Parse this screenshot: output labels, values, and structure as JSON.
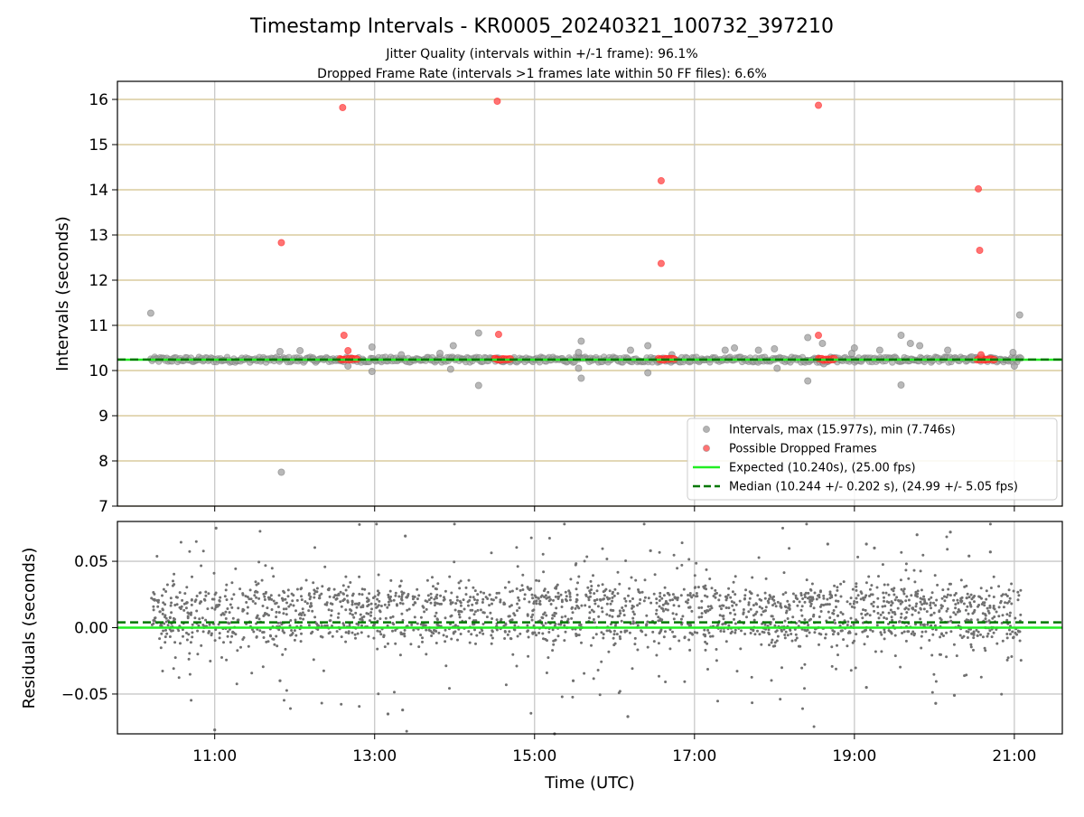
{
  "chart_data": {
    "type": "scatter",
    "title": "Timestamp Intervals - KR0005_20240321_100732_397210",
    "subtitle_lines": [
      "Jitter Quality (intervals within +/-1 frame): 96.1%",
      "Dropped Frame Rate (intervals >1 frames late within 50 FF files): 6.6%"
    ],
    "xlabel": "Time (UTC)",
    "x_ticks": [
      "11:00",
      "13:00",
      "15:00",
      "17:00",
      "19:00",
      "21:00"
    ],
    "x_range": [
      "09:47",
      "21:36"
    ],
    "panels": [
      {
        "ylabel": "Intervals (seconds)",
        "ylim": [
          7,
          16.4
        ],
        "y_ticks": [
          "7",
          "8",
          "9",
          "10",
          "11",
          "12",
          "13",
          "14",
          "15",
          "16"
        ],
        "grid": true,
        "legend_position": "lower-right",
        "legend": [
          {
            "label": "Intervals, max (15.977s), min (7.746s)",
            "kind": "marker",
            "color": "#a0a0a0"
          },
          {
            "label": "Possible Dropped Frames",
            "kind": "marker",
            "color": "#ff5050"
          },
          {
            "label": "Expected (10.240s), (25.00 fps)",
            "kind": "line",
            "color": "#22ee22"
          },
          {
            "label": "Median (10.244 +/- 0.202 s), (24.99 +/- 5.05 fps)",
            "kind": "dashed",
            "color": "#007700"
          }
        ],
        "expected_line": 10.24,
        "median_line": 10.244,
        "series": [
          {
            "name": "Intervals, max (15.977s), min (7.746s)",
            "color": "#a0a0a0",
            "baseline": {
              "y_min": 10.18,
              "y_max": 10.3,
              "x_start": "10:12",
              "x_end": "21:05"
            },
            "points": [
              [
                "10:12",
                11.27
              ],
              [
                "11:50",
                7.75
              ],
              [
                "21:04",
                11.23
              ],
              [
                "11:49",
                10.42
              ],
              [
                "12:04",
                10.44
              ],
              [
                "12:14",
                10.25
              ],
              [
                "12:40",
                10.1
              ],
              [
                "12:58",
                10.52
              ],
              [
                "12:58",
                9.98
              ],
              [
                "13:20",
                10.35
              ],
              [
                "13:49",
                10.38
              ],
              [
                "13:57",
                10.03
              ],
              [
                "13:59",
                10.55
              ],
              [
                "14:18",
                10.83
              ],
              [
                "14:18",
                9.67
              ],
              [
                "15:35",
                10.65
              ],
              [
                "15:35",
                9.83
              ],
              [
                "15:33",
                10.4
              ],
              [
                "15:33",
                10.05
              ],
              [
                "16:12",
                10.45
              ],
              [
                "16:25",
                10.55
              ],
              [
                "16:25",
                9.95
              ],
              [
                "16:43",
                10.35
              ],
              [
                "17:23",
                10.45
              ],
              [
                "17:30",
                10.5
              ],
              [
                "17:48",
                10.45
              ],
              [
                "18:00",
                10.48
              ],
              [
                "18:02",
                10.05
              ],
              [
                "18:25",
                10.73
              ],
              [
                "18:25",
                9.77
              ],
              [
                "18:31",
                10.25
              ],
              [
                "18:36",
                10.6
              ],
              [
                "18:37",
                10.15
              ],
              [
                "18:58",
                10.38
              ],
              [
                "19:00",
                10.5
              ],
              [
                "19:19",
                10.45
              ],
              [
                "19:35",
                10.78
              ],
              [
                "19:35",
                9.68
              ],
              [
                "19:42",
                10.6
              ],
              [
                "19:49",
                10.55
              ],
              [
                "20:10",
                10.45
              ],
              [
                "20:28",
                10.3
              ],
              [
                "20:59",
                10.4
              ],
              [
                "21:00",
                10.1
              ]
            ]
          },
          {
            "name": "Possible Dropped Frames",
            "color": "#ff5050",
            "points": [
              [
                "11:50",
                12.83
              ],
              [
                "12:36",
                15.82
              ],
              [
                "12:37",
                10.78
              ],
              [
                "12:40",
                10.44
              ],
              [
                "14:32",
                15.96
              ],
              [
                "14:33",
                10.8
              ],
              [
                "16:35",
                14.2
              ],
              [
                "16:35",
                12.37
              ],
              [
                "18:33",
                15.87
              ],
              [
                "18:33",
                10.78
              ],
              [
                "20:33",
                14.02
              ],
              [
                "20:34",
                12.66
              ],
              [
                "20:35",
                10.35
              ]
            ],
            "clusters": [
              {
                "x_start": "12:34",
                "x_end": "12:47",
                "y": 10.25
              },
              {
                "x_start": "14:30",
                "x_end": "14:42",
                "y": 10.25
              },
              {
                "x_start": "16:33",
                "x_end": "16:45",
                "y": 10.25
              },
              {
                "x_start": "18:33",
                "x_end": "18:45",
                "y": 10.25
              },
              {
                "x_start": "20:32",
                "x_end": "20:45",
                "y": 10.25
              }
            ]
          }
        ]
      },
      {
        "ylabel": "Residuals (seconds)",
        "ylim": [
          -0.08,
          0.08
        ],
        "y_ticks": [
          "−0.05",
          "0.00",
          "0.05"
        ],
        "grid": true,
        "expected_line": 0.0,
        "median_line": 0.004,
        "series": [
          {
            "name": "Residuals",
            "color": "#707070",
            "point_count": 2200,
            "bands": [
              {
                "center": 0.02,
                "spread": 0.006,
                "share": 0.42
              },
              {
                "center": 0.0,
                "spread": 0.006,
                "share": 0.38
              },
              {
                "center": 0.005,
                "spread": 0.03,
                "share": 0.2
              }
            ],
            "x_start": "10:12",
            "x_end": "21:05",
            "outliers": [
              [
                "11:01",
                0.075
              ],
              [
                "11:00",
                -0.077
              ],
              [
                "13:23",
                0.069
              ],
              [
                "13:21",
                -0.062
              ],
              [
                "13:10",
                -0.065
              ],
              [
                "15:15",
                -0.08
              ],
              [
                "16:10",
                -0.067
              ],
              [
                "16:27",
                0.058
              ],
              [
                "18:40",
                0.063
              ],
              [
                "19:09",
                0.063
              ],
              [
                "19:15",
                0.06
              ],
              [
                "19:47",
                0.07
              ],
              [
                "20:01",
                -0.057
              ],
              [
                "20:12",
                0.072
              ],
              [
                "20:15",
                -0.051
              ],
              [
                "20:26",
                0.054
              ],
              [
                "20:42",
                0.057
              ],
              [
                "11:49",
                -0.04
              ],
              [
                "15:29",
                -0.04
              ],
              [
                "19:09",
                -0.045
              ]
            ]
          }
        ]
      }
    ]
  }
}
